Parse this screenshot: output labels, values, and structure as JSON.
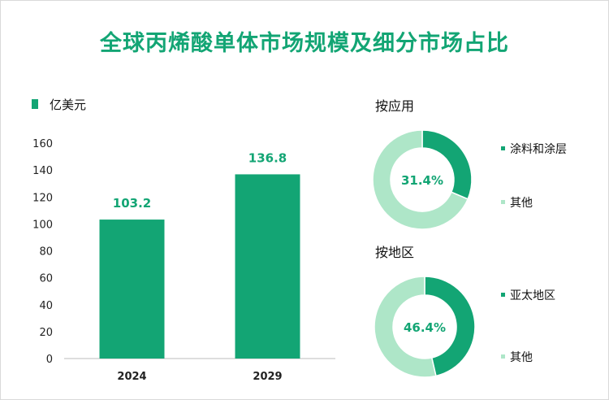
{
  "title": "全球丙烯酸单体市场规模及细分市场占比",
  "colors": {
    "primary": "#13a574",
    "light": "#aee6c8",
    "axis": "#bdbdbd",
    "text": "#222222"
  },
  "chart_data": [
    {
      "type": "bar",
      "legend": "亿美元",
      "categories": [
        "2024",
        "2029"
      ],
      "values": [
        103.2,
        136.8
      ],
      "value_labels": [
        "103.2",
        "136.8"
      ],
      "ylim": [
        0,
        160
      ],
      "yticks": [
        0,
        20,
        40,
        60,
        80,
        100,
        120,
        140,
        160
      ],
      "ytick_labels": [
        "0",
        "20",
        "40",
        "60",
        "80",
        "100",
        "120",
        "140",
        "160"
      ],
      "grid": false,
      "legend_position": "top-left"
    },
    {
      "type": "pie",
      "style": "donut",
      "title": "按应用",
      "slices": [
        {
          "name": "涂料和涂层",
          "value": 31.4
        },
        {
          "name": "其他",
          "value": 68.6
        }
      ],
      "center_label": "31.4%"
    },
    {
      "type": "pie",
      "style": "donut",
      "title": "按地区",
      "slices": [
        {
          "name": "亚太地区",
          "value": 46.4
        },
        {
          "name": "其他",
          "value": 53.6
        }
      ],
      "center_label": "46.4%"
    }
  ]
}
